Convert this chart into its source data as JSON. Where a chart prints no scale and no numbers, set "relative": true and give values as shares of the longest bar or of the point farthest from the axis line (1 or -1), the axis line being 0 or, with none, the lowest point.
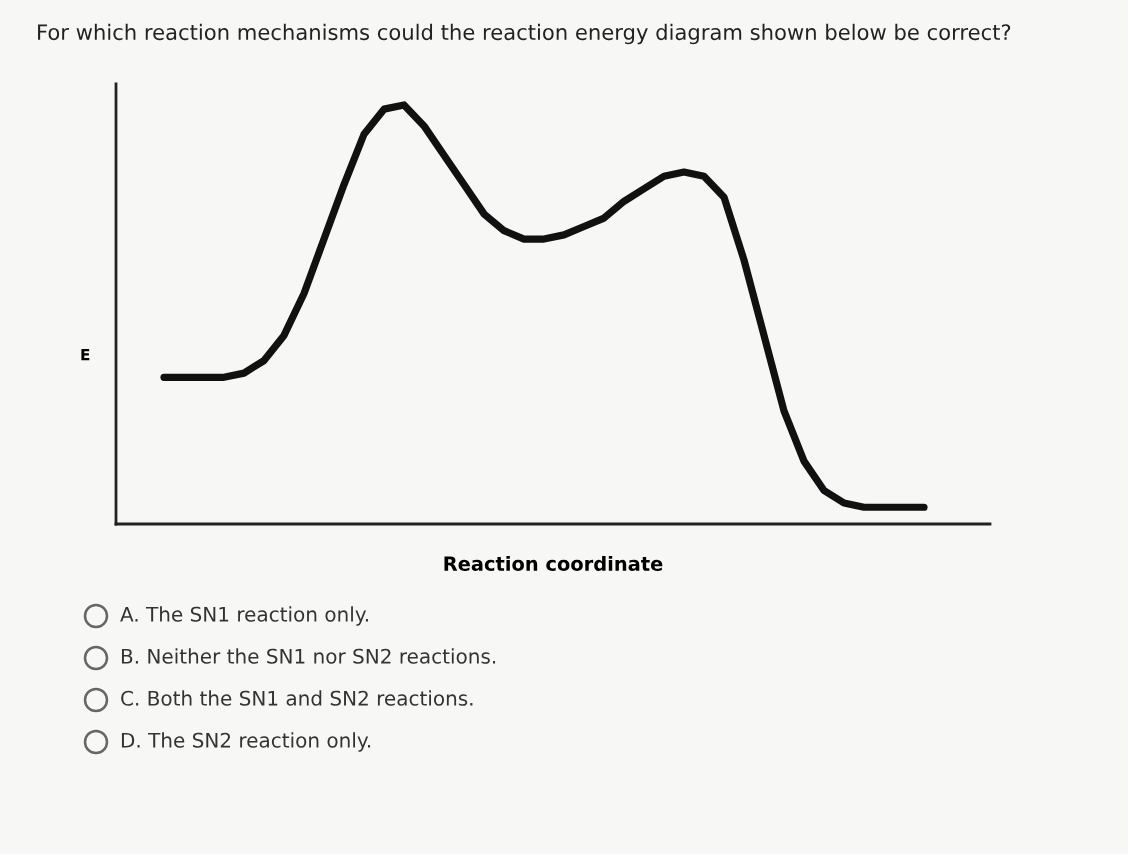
{
  "chart_data": {
    "type": "line",
    "relative": true,
    "title": "For which reaction mechanisms could the reaction energy diagram shown below be correct?",
    "xlabel": "Reaction coordinate",
    "ylabel": "E",
    "categories": [
      null,
      null,
      null,
      null,
      null,
      null,
      null,
      null,
      null,
      null,
      null,
      null,
      null,
      null,
      null,
      null,
      null,
      null,
      null,
      null,
      null,
      null,
      null,
      null,
      null,
      null,
      null,
      null,
      null,
      null,
      null,
      null,
      null,
      null,
      null,
      null,
      null,
      null,
      null
    ],
    "series": [
      {
        "color": "#111111",
        "values": [
          0.35,
          0.35,
          0.35,
          0.35,
          0.36,
          0.39,
          0.45,
          0.55,
          0.68,
          0.81,
          0.93,
          0.99,
          1.0,
          0.95,
          0.88,
          0.81,
          0.74,
          0.7,
          0.68,
          0.68,
          0.69,
          0.71,
          0.73,
          0.77,
          0.8,
          0.83,
          0.84,
          0.83,
          0.78,
          0.63,
          0.45,
          0.27,
          0.15,
          0.08,
          0.05,
          0.04,
          0.04,
          0.04,
          0.04
        ]
      }
    ],
    "annotations": [
      "A. The SN1 reaction only.",
      "B. Neither the SN1 nor SN2 reactions.",
      "C. Both the SN1 and SN2 reactions.",
      "D. The SN2 reaction only."
    ],
    "grid": false,
    "legend": false,
    "marker": "none",
    "line_style": "solid"
  }
}
